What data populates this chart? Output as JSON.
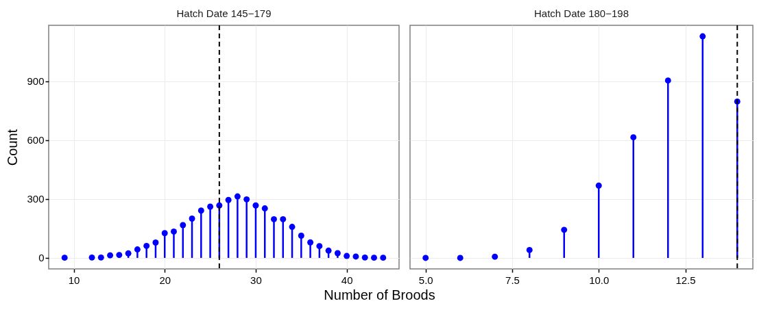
{
  "chart_data": [
    {
      "type": "lollipop",
      "title": "Hatch Date 145−179",
      "xlabel": "Number of Broods",
      "ylabel": "Count",
      "marker": "circle",
      "grid": true,
      "x": [
        9,
        12,
        13,
        14,
        15,
        16,
        17,
        18,
        19,
        20,
        21,
        22,
        23,
        24,
        25,
        26,
        27,
        28,
        29,
        30,
        31,
        32,
        33,
        34,
        35,
        36,
        37,
        38,
        39,
        40,
        41,
        42,
        43,
        44
      ],
      "values": [
        1,
        2,
        2,
        13,
        15,
        23,
        43,
        61,
        78,
        126,
        134,
        167,
        200,
        241,
        261,
        267,
        295,
        313,
        298,
        267,
        252,
        197,
        197,
        158,
        113,
        79,
        60,
        37,
        24,
        10,
        7,
        2,
        1,
        1
      ],
      "color": "#0000ff",
      "xlim": [
        7.25,
        45.75
      ],
      "xticks": [
        10,
        20,
        30,
        40
      ],
      "ylim": [
        -56,
        1184
      ],
      "yticks": [
        0,
        300,
        600,
        900
      ],
      "ref_lines": [
        {
          "axis": "x",
          "value": 26,
          "color": "#000000",
          "line_style": "dashed"
        }
      ]
    },
    {
      "type": "lollipop",
      "title": "Hatch Date 180−198",
      "marker": "circle",
      "grid": true,
      "tick_labels": "x",
      "x": [
        5,
        6,
        7,
        8,
        9,
        10,
        11,
        12,
        13,
        14
      ],
      "values": [
        0,
        0,
        6,
        40,
        143,
        368,
        614,
        903,
        1128,
        796
      ],
      "color": "#0000ff",
      "xlim": [
        4.55,
        14.45
      ],
      "xticks": [
        {
          "value": 5,
          "label": "5.0"
        },
        {
          "value": 7.5,
          "label": "7.5"
        },
        {
          "value": 10,
          "label": "10.0"
        },
        {
          "value": 12.5,
          "label": "12.5"
        }
      ],
      "ylim": [
        -56,
        1184
      ],
      "yticks": [
        0,
        300,
        600,
        900
      ],
      "ref_lines": [
        {
          "axis": "x",
          "value": 14,
          "color": "#000000",
          "line_style": "dashed"
        }
      ]
    }
  ]
}
